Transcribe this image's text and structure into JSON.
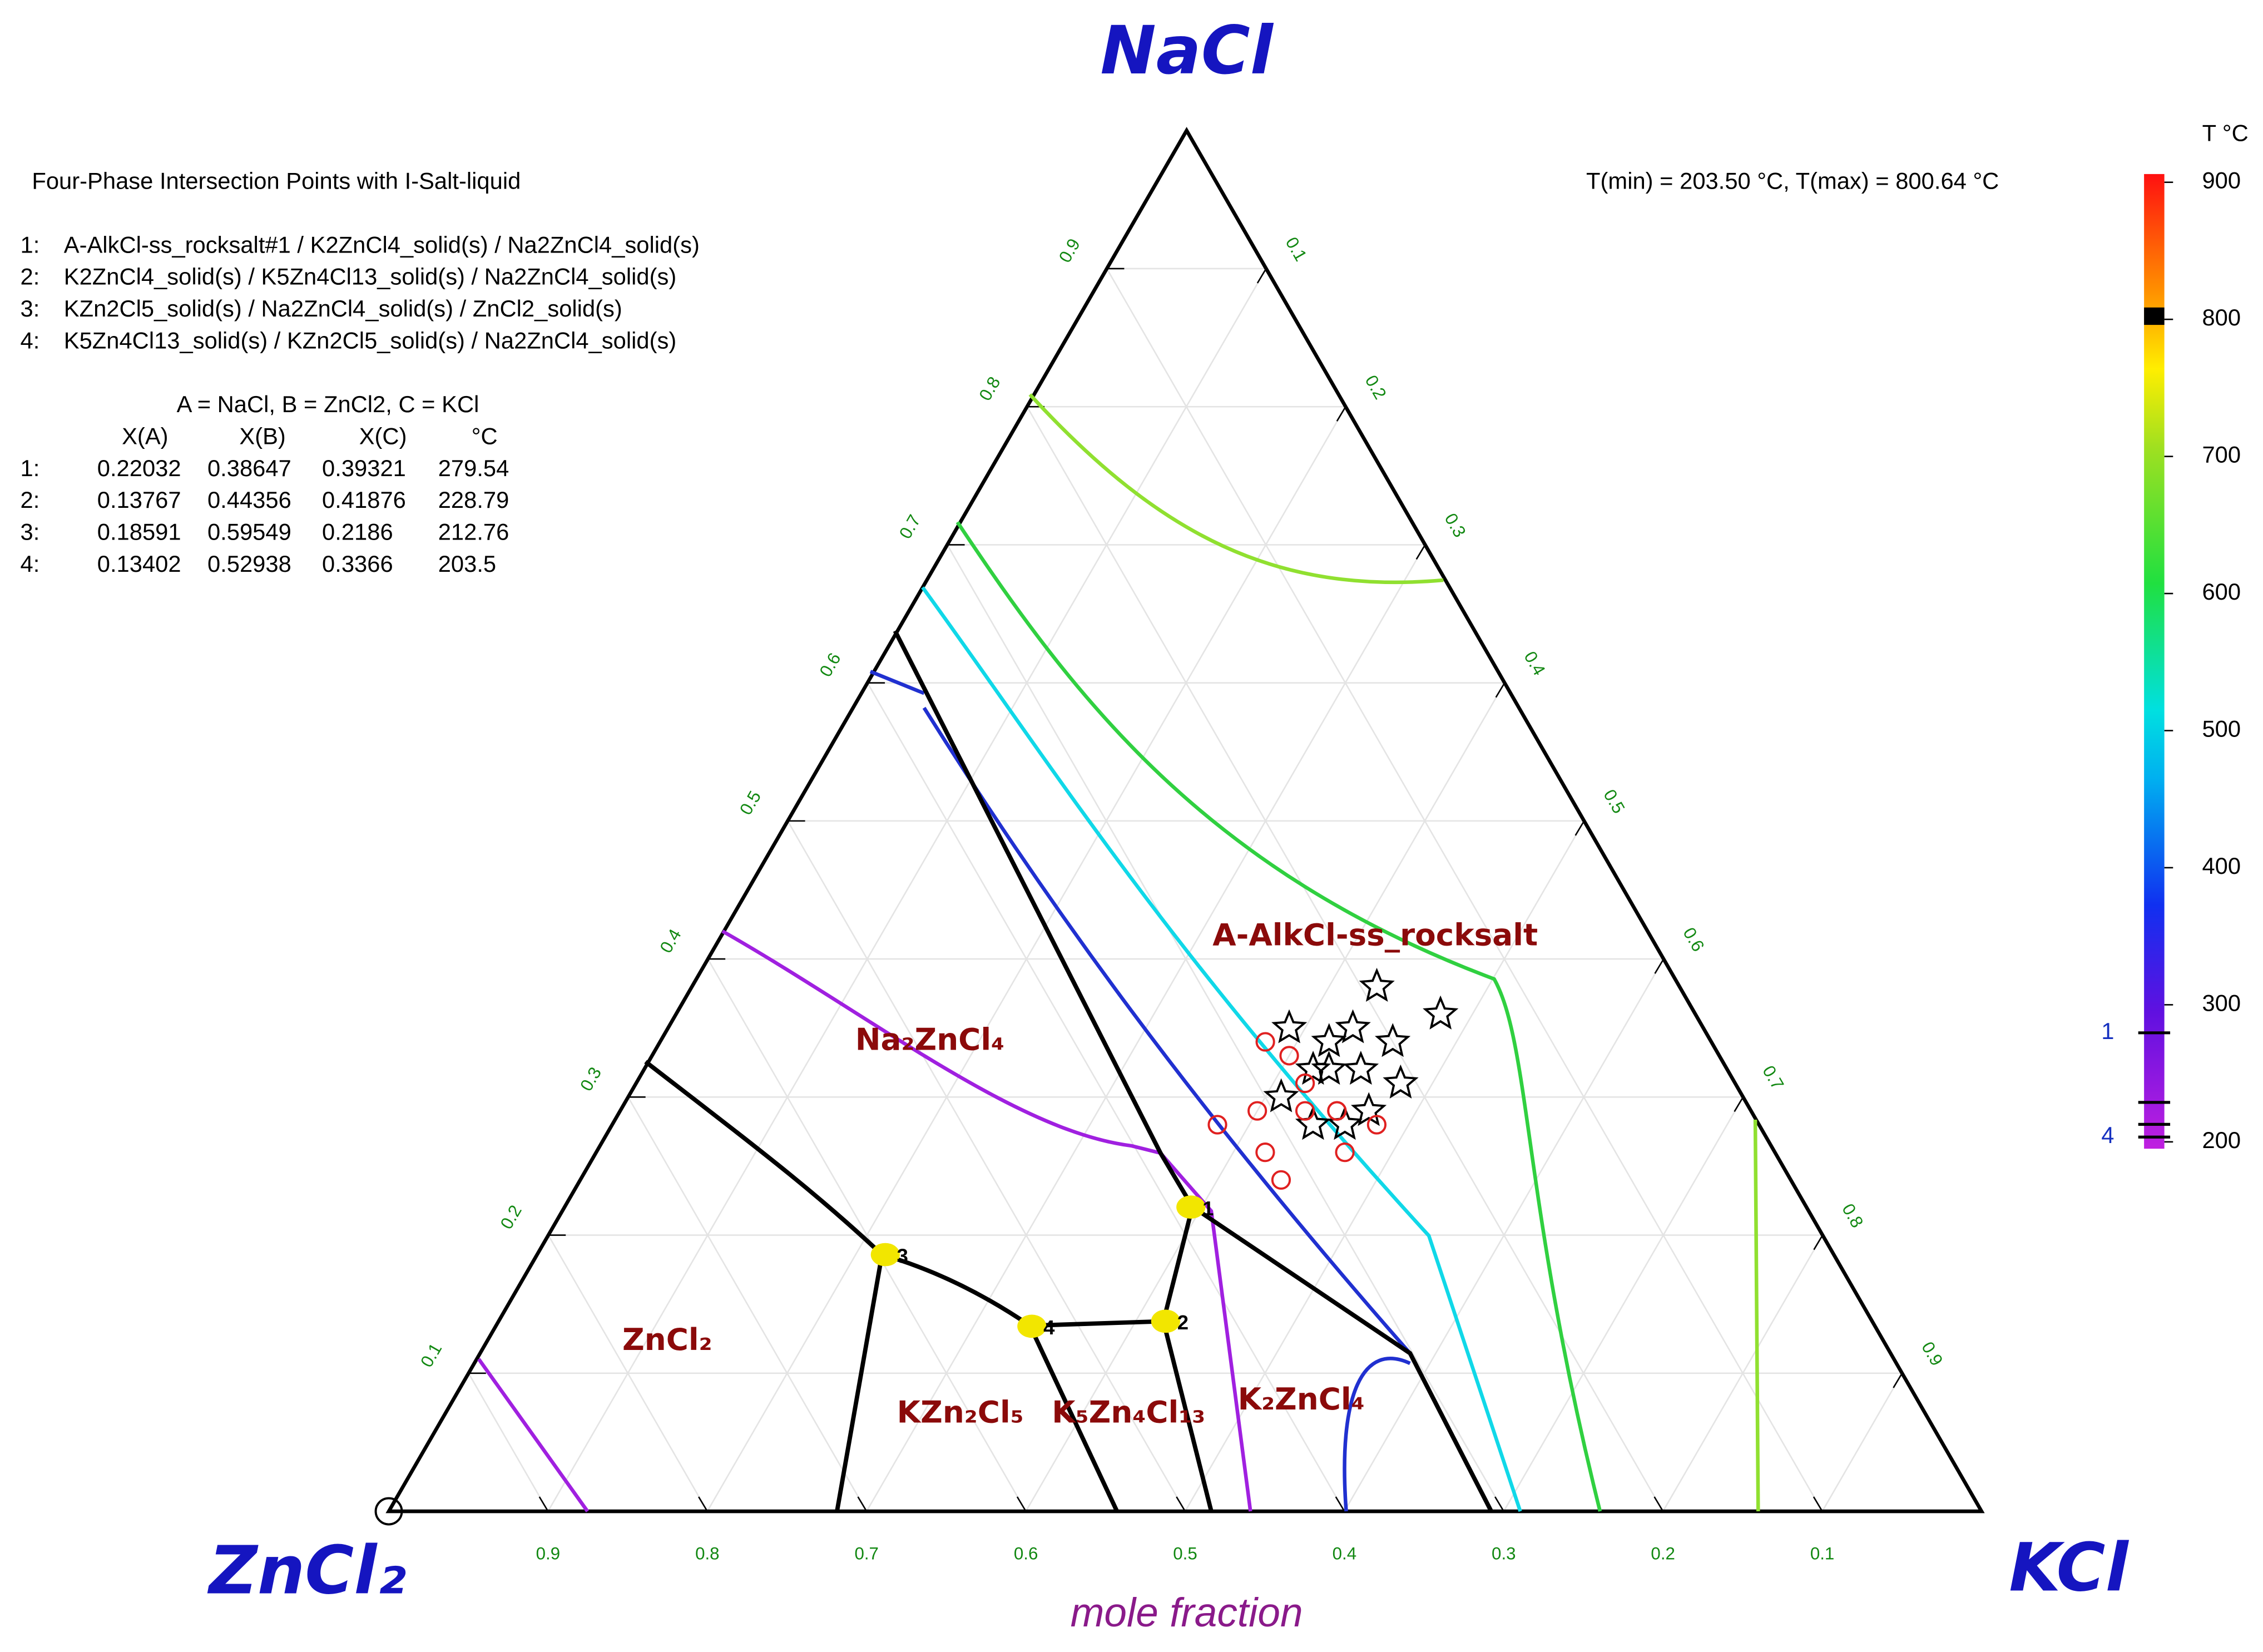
{
  "chart_data": {
    "type": "ternary",
    "vertices": {
      "top": "NaCl",
      "left": "ZnCl₂",
      "right": "KCl"
    },
    "xlabel": "mole fraction",
    "info_title": "Four-Phase Intersection Points with I-Salt-liquid",
    "assemblages": [
      {
        "label": "1:",
        "text": "A-AlkCl-ss_rocksalt#1 / K2ZnCl4_solid(s) / Na2ZnCl4_solid(s)"
      },
      {
        "label": "2:",
        "text": "K2ZnCl4_solid(s) / K5Zn4Cl13_solid(s) / Na2ZnCl4_solid(s)"
      },
      {
        "label": "3:",
        "text": "KZn2Cl5_solid(s) / Na2ZnCl4_solid(s) / ZnCl2_solid(s)"
      },
      {
        "label": "4:",
        "text": "K5Zn4Cl13_solid(s) / KZn2Cl5_solid(s) / Na2ZnCl4_solid(s)"
      }
    ],
    "definition": "A = NaCl,  B = ZnCl2,  C = KCl",
    "table": {
      "columns": [
        "X(A)",
        "X(B)",
        "X(C)",
        "°C"
      ],
      "rows": [
        {
          "label": "1:",
          "values": [
            0.22032,
            0.38647,
            0.39321,
            279.54
          ]
        },
        {
          "label": "2:",
          "values": [
            0.13767,
            0.44356,
            0.41876,
            228.79
          ]
        },
        {
          "label": "3:",
          "values": [
            0.18591,
            0.59549,
            0.2186,
            212.76
          ]
        },
        {
          "label": "4:",
          "values": [
            0.13402,
            0.52938,
            0.3366,
            203.5
          ]
        }
      ]
    },
    "point_labels": [
      "1",
      "2",
      "3",
      "4"
    ],
    "trange": "T(min) = 203.50 °C, T(max) = 800.64 °C",
    "phase_labels": [
      "A-AlkCl-ss_rocksalt",
      "Na₂ZnCl₄",
      "ZnCl₂",
      "KZn₂Cl₅",
      "K₅Zn₄Cl₁₃",
      "K₂ZnCl₄"
    ],
    "left_ticks": [
      0.1,
      0.2,
      0.3,
      0.4,
      0.5,
      0.6,
      0.7,
      0.8,
      0.9
    ],
    "right_ticks": [
      0.1,
      0.2,
      0.3,
      0.4,
      0.5,
      0.6,
      0.7,
      0.8,
      0.9
    ],
    "bottom_ticks": [
      0.9,
      0.8,
      0.7,
      0.6,
      0.5,
      0.4,
      0.3,
      0.2,
      0.1
    ],
    "grid": true,
    "series": [
      {
        "marker": "star",
        "color": "#000000",
        "a": [
          0.38,
          0.36,
          0.35,
          0.35,
          0.34,
          0.34,
          0.32,
          0.32,
          0.31,
          0.3,
          0.32,
          0.29,
          0.28,
          0.28
        ],
        "c": [
          0.43,
          0.48,
          0.39,
          0.43,
          0.42,
          0.46,
          0.45,
          0.42,
          0.48,
          0.41,
          0.43,
          0.47,
          0.46,
          0.44
        ]
      },
      {
        "marker": "circle",
        "color": "#e02020",
        "a": [
          0.34,
          0.33,
          0.31,
          0.28,
          0.29,
          0.29,
          0.29,
          0.29,
          0.28,
          0.26,
          0.26,
          0.24
        ],
        "c": [
          0.38,
          0.4,
          0.42,
          0.38,
          0.4,
          0.43,
          0.45,
          0.45,
          0.48,
          0.42,
          0.47,
          0.44
        ]
      }
    ],
    "colorbar": {
      "title": "T °C",
      "lim": [
        195,
        906
      ],
      "ticks": [
        200,
        300,
        400,
        500,
        600,
        700,
        800,
        900
      ]
    }
  }
}
